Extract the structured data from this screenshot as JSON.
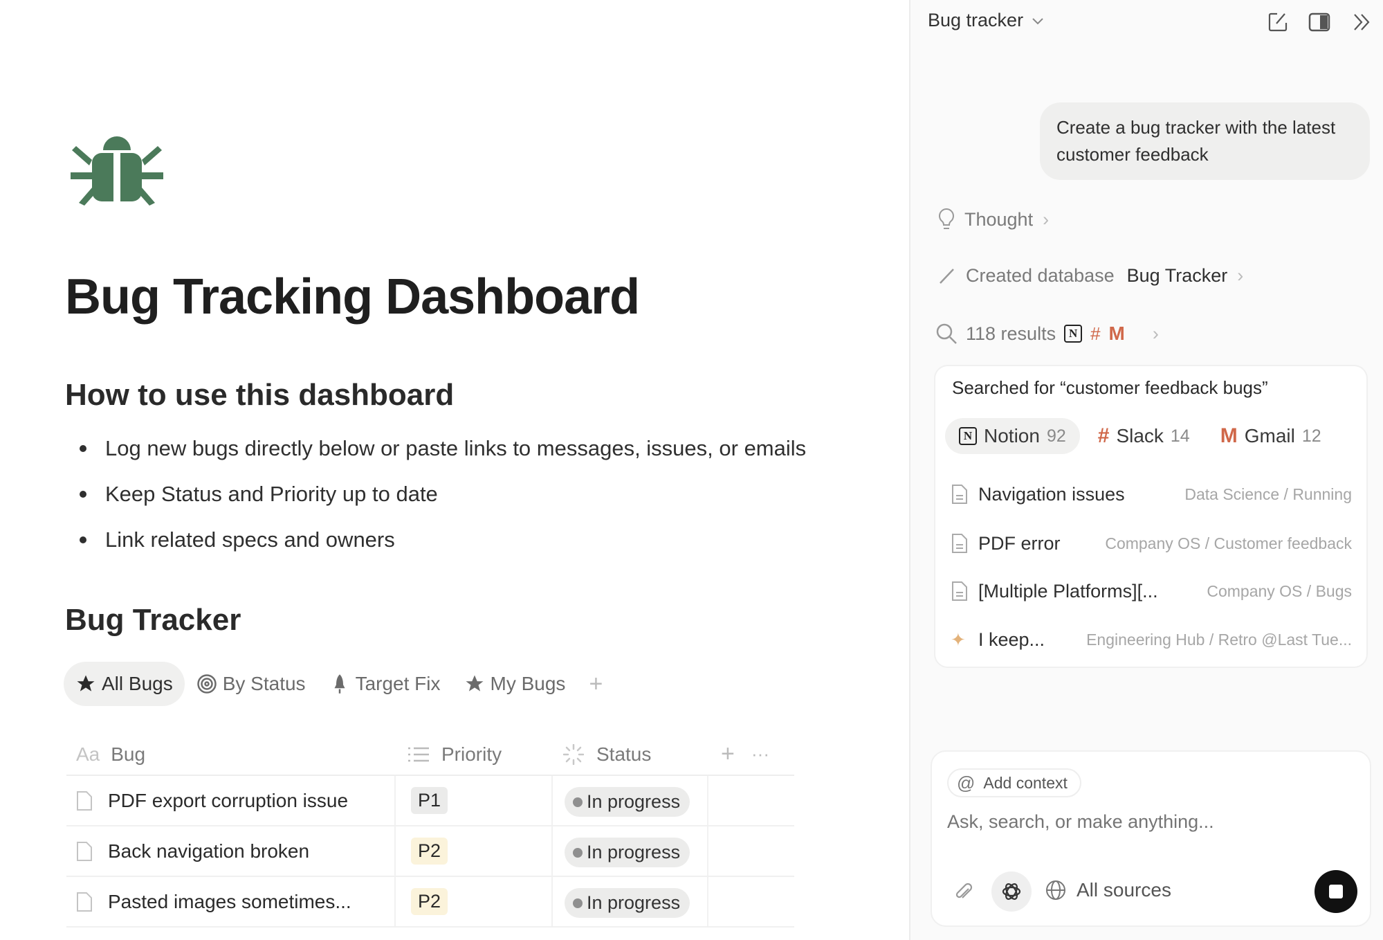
{
  "page": {
    "icon": "bug-icon",
    "icon_color": "#4b7a5a",
    "title": "Bug Tracking Dashboard",
    "howto_heading": "How to use this dashboard",
    "bullets": [
      "Log new bugs directly below or paste links to messages, issues, or emails",
      "Keep Status and Priority up to date",
      "Link related specs and owners"
    ],
    "tracker_heading": "Bug Tracker",
    "views": [
      {
        "label": "All Bugs",
        "icon": "star-icon",
        "active": true
      },
      {
        "label": "By Status",
        "icon": "target-icon",
        "active": false
      },
      {
        "label": "Target Fix",
        "icon": "rocket-icon",
        "active": false
      },
      {
        "label": "My Bugs",
        "icon": "star-icon",
        "active": false
      }
    ],
    "add_view": "+",
    "table": {
      "columns": [
        {
          "label": "Bug",
          "icon": "Aa"
        },
        {
          "label": "Priority",
          "icon": "list-icon"
        },
        {
          "label": "Status",
          "icon": "status-spinner-icon"
        }
      ],
      "rows": [
        {
          "bug": "PDF export corruption issue",
          "priority": "P1",
          "status": "In progress"
        },
        {
          "bug": "Back navigation broken",
          "priority": "P2",
          "status": "In progress"
        },
        {
          "bug": "Pasted images sometimes...",
          "priority": "P2",
          "status": "In progress"
        }
      ],
      "priority_colors": {
        "P1": "#ebebea",
        "P2": "#fbf3db"
      }
    }
  },
  "panel": {
    "title": "Bug tracker",
    "user_message": "Create a bug tracker with the latest customer feedback",
    "thought_label": "Thought",
    "created_label": "Created database",
    "created_target": "Bug Tracker",
    "results_label": "118 results",
    "search_card": {
      "query_text": "Searched for “customer feedback bugs”",
      "sources": [
        {
          "name": "Notion",
          "count": "92",
          "active": true
        },
        {
          "name": "Slack",
          "count": "14",
          "active": false
        },
        {
          "name": "Gmail",
          "count": "12",
          "active": false
        }
      ],
      "results": [
        {
          "title": "Navigation issues",
          "path": "Data Science / Running",
          "icon": "page-icon"
        },
        {
          "title": "PDF error",
          "path": "Company OS / Customer feedback",
          "icon": "page-icon"
        },
        {
          "title": "[Multiple Platforms][...",
          "path": "Company OS / Bugs",
          "icon": "page-icon"
        },
        {
          "title": "I keep...",
          "path": "Engineering Hub / Retro @Last Tue...",
          "icon": "sparkle-icon"
        }
      ]
    },
    "composer": {
      "add_context": "Add context",
      "placeholder": "Ask, search, or make anything...",
      "sources_label": "All sources"
    }
  }
}
